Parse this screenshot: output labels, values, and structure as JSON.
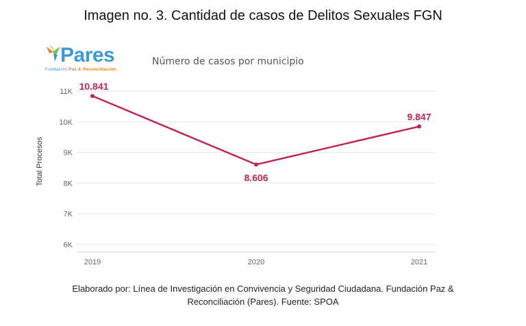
{
  "heading": "Imagen no. 3. Cantidad de casos de Delitos Sexuales FGN",
  "logo": {
    "name": "Pares",
    "tagline_prefix": "Fundación",
    "tagline_mid": "Paz & Reconciliación"
  },
  "caption": {
    "line1": "Elaborado por: Línea de Investigación en Convivencia y Seguridad Ciudadana. Fundación Paz &",
    "line2": "Reconciliación (Pares). Fuente: SPOA"
  },
  "colors": {
    "series": "#c0254f",
    "grid": "#e6e6e6",
    "tick": "#666666"
  },
  "chart_data": {
    "type": "line",
    "title": "Número de casos por municipio",
    "xlabel": "",
    "ylabel": "Total Procesos",
    "categories": [
      "2019",
      "2020",
      "2021"
    ],
    "values": [
      10841,
      8606,
      9847
    ],
    "data_labels": [
      "10.841",
      "8.606",
      "9.847"
    ],
    "ylim": [
      5800,
      11000
    ],
    "yticks": [
      6000,
      7000,
      8000,
      9000,
      10000,
      11000
    ],
    "ytick_labels": [
      "6K",
      "7K",
      "8K",
      "9K",
      "10K",
      "11K"
    ],
    "grid": true
  }
}
